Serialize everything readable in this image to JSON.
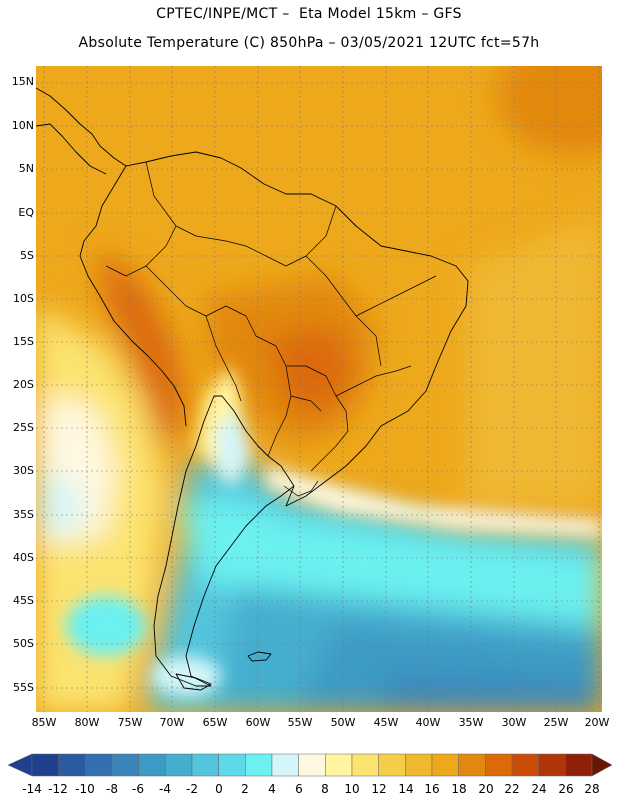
{
  "header": {
    "line1": "CPTEC/INPE/MCT –  Eta Model 15km – GFS",
    "line2": "Absolute Temperature (C) 850hPa – 03/05/2021 12UTC fct=57h"
  },
  "map": {
    "lat_labels": [
      "15N",
      "10N",
      "5N",
      "EQ",
      "5S",
      "10S",
      "15S",
      "20S",
      "25S",
      "30S",
      "35S",
      "40S",
      "45S",
      "50S",
      "55S"
    ],
    "lon_labels": [
      "85W",
      "80W",
      "75W",
      "70W",
      "65W",
      "60W",
      "55W",
      "50W",
      "45W",
      "40W",
      "35W",
      "30W",
      "25W",
      "20W"
    ]
  },
  "colorbar": {
    "labels": [
      "-14",
      "-12",
      "-10",
      "-8",
      "-6",
      "-4",
      "-2",
      "0",
      "2",
      "4",
      "6",
      "8",
      "10",
      "12",
      "14",
      "16",
      "18",
      "20",
      "22",
      "24",
      "26",
      "28"
    ],
    "colors": [
      "#1f3f8f",
      "#2a5aa0",
      "#3370b0",
      "#3a86bc",
      "#3d9ac4",
      "#45aecf",
      "#52c4dc",
      "#5fd8e8",
      "#6cf0f0",
      "#d4f6f8",
      "#fff8e0",
      "#fff4a0",
      "#fce36f",
      "#f5cd4a",
      "#f0b830",
      "#eda81c",
      "#e2880f",
      "#dc6a0a",
      "#c94d08",
      "#b03608",
      "#8f2008",
      "#6a1606"
    ]
  }
}
